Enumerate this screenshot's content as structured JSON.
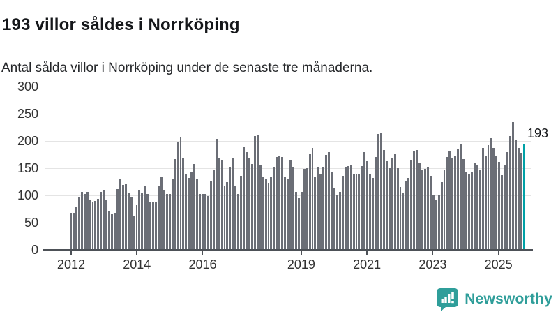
{
  "header": {
    "title": "193 villor såldes i Norrköping",
    "subtitle": "Antal sålda villor i Norrköping under de senaste tre månaderna."
  },
  "annotation": {
    "label": "193"
  },
  "logo": {
    "text": "Newsworthy",
    "icon": "bar-chart-speech-bubble-icon"
  },
  "colors": {
    "bar": "#6b6e76",
    "highlight": "#00a1a7",
    "logo": "#2f9e9a",
    "grid": "#e4e4e4",
    "axis": "#4d5157",
    "text": "#15171a"
  },
  "chart_data": {
    "type": "bar",
    "title": "193 villor såldes i Norrköping",
    "subtitle": "Antal sålda villor i Norrköping under de senaste tre månaderna.",
    "ylabel": "",
    "xlabel": "",
    "ylim": [
      0,
      300
    ],
    "y_ticks": [
      0,
      50,
      100,
      150,
      200,
      250,
      300
    ],
    "x_tick_labels": [
      "2012",
      "2014",
      "2016",
      "2019",
      "2021",
      "2023",
      "2025"
    ],
    "start_year": 2012,
    "frequency": "monthly",
    "grid": "horizontal-only",
    "legend": "none",
    "highlight_last": true,
    "highlight_value": 193,
    "values": [
      68,
      68,
      78,
      97,
      106,
      103,
      107,
      92,
      89,
      90,
      94,
      107,
      110,
      91,
      72,
      67,
      68,
      112,
      130,
      119,
      122,
      105,
      97,
      62,
      82,
      110,
      104,
      118,
      102,
      87,
      87,
      87,
      117,
      134,
      110,
      102,
      102,
      130,
      167,
      197,
      208,
      169,
      138,
      132,
      144,
      158,
      130,
      102,
      103,
      102,
      99,
      127,
      147,
      204,
      168,
      164,
      117,
      125,
      153,
      169,
      117,
      102,
      136,
      188,
      179,
      168,
      158,
      209,
      212,
      157,
      134,
      130,
      123,
      134,
      151,
      170,
      172,
      171,
      134,
      130,
      166,
      151,
      106,
      95,
      107,
      149,
      150,
      177,
      187,
      135,
      153,
      138,
      153,
      175,
      179,
      143,
      114,
      100,
      106,
      136,
      153,
      154,
      155,
      139,
      139,
      139,
      154,
      179,
      163,
      138,
      132,
      171,
      213,
      216,
      183,
      163,
      150,
      168,
      177,
      150,
      116,
      105,
      127,
      132,
      165,
      182,
      183,
      159,
      147,
      149,
      151,
      136,
      101,
      92,
      101,
      124,
      148,
      171,
      181,
      169,
      173,
      186,
      195,
      167,
      144,
      139,
      144,
      160,
      157,
      148,
      187,
      173,
      192,
      205,
      187,
      173,
      161,
      137,
      157,
      179,
      209,
      235,
      203,
      187,
      178,
      193
    ]
  }
}
